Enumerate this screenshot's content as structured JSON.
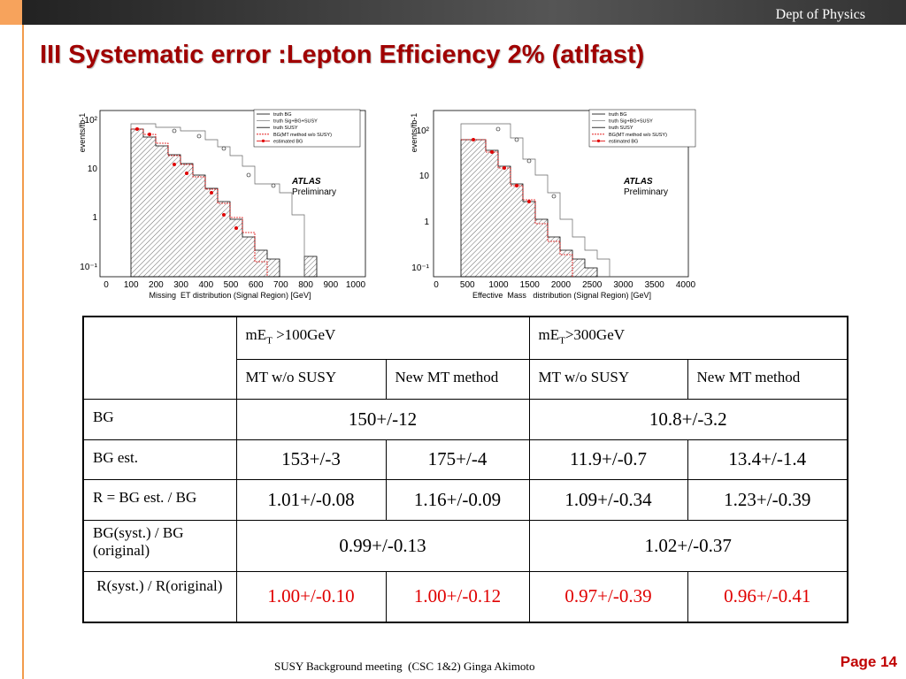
{
  "header": {
    "dept": "Dept of Physics",
    "title": "III Systematic error :Lepton Efficiency 2% (atlfast)"
  },
  "plots": [
    {
      "ylabel": "events/fb-1",
      "yticks": [
        "10²",
        "10",
        "1",
        "10⁻¹"
      ],
      "xticks": [
        "0",
        "100",
        "200",
        "300",
        "400",
        "500",
        "600",
        "700",
        "800",
        "900",
        "1000"
      ],
      "xlabel": "Missing  ET distribution (Signal Region) [GeV]",
      "legend": [
        "truth BG",
        "truth Sig+BG+SUSY",
        "truth SUSY",
        "BG(MT method w/o SUSY)",
        "estimated BG"
      ],
      "atlas": "ATLAS",
      "preliminary": "Preliminary"
    },
    {
      "ylabel": "events/fb-1",
      "yticks": [
        "10²",
        "10",
        "1",
        "10⁻¹"
      ],
      "xticks": [
        "0",
        "500",
        "1000",
        "1500",
        "2000",
        "2500",
        "3000",
        "3500",
        "4000"
      ],
      "xlabel": "Effective  Mass   distribution (Signal Region) [GeV]",
      "legend": [
        "truth BG",
        "truth Sig+BG+SUSY",
        "truth SUSY",
        "BG(MT method w/o SUSY)",
        "estimated BG"
      ],
      "atlas": "ATLAS",
      "preliminary": "Preliminary"
    }
  ],
  "table": {
    "cuts": [
      {
        "prefix": "mE",
        "sub": "T",
        "rest": " >100GeV"
      },
      {
        "prefix": "mE",
        "sub": "T",
        "rest": ">300GeV"
      }
    ],
    "methods": [
      "MT w/o SUSY",
      "New MT method",
      "MT w/o SUSY",
      "New MT method"
    ],
    "rows": [
      {
        "label": "BG",
        "cells": [
          "150+/-12",
          "10.8+/-3.2"
        ]
      },
      {
        "label": "BG est.",
        "cells": [
          "153+/-3",
          "175+/-4",
          "11.9+/-0.7",
          "13.4+/-1.4"
        ]
      },
      {
        "label": "R = BG est. / BG",
        "cells": [
          "1.01+/-0.08",
          "1.16+/-0.09",
          "1.09+/-0.34",
          "1.23+/-0.39"
        ]
      },
      {
        "label": "BG(syst.) / BG (original)",
        "cells": [
          "0.99+/-0.13",
          "1.02+/-0.37"
        ]
      },
      {
        "label": " R(syst.) / R(original)",
        "cells": [
          "1.00+/-0.10",
          "1.00+/-0.12",
          "0.97+/-0.39",
          "0.96+/-0.41"
        ]
      }
    ]
  },
  "footer": {
    "meeting": "SUSY Background meeting  (CSC 1&2) Ginga Akimoto",
    "page": "Page 14"
  }
}
